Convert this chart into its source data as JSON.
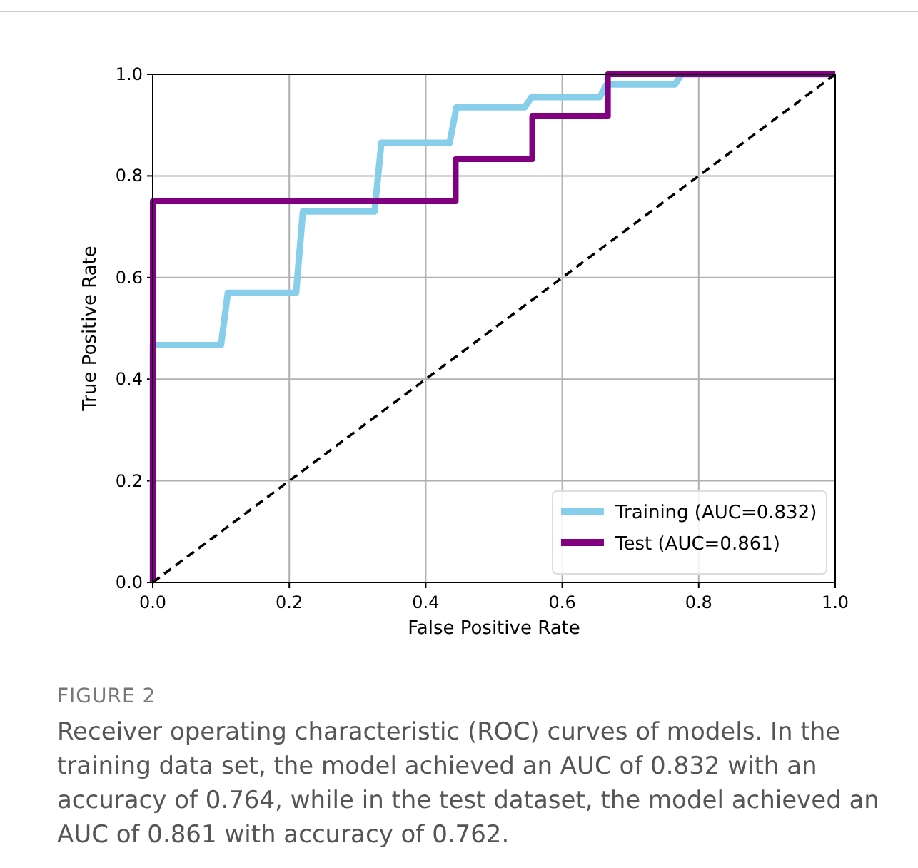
{
  "chart_data": {
    "type": "line",
    "xlabel": "False Positive Rate",
    "ylabel": "True Positive Rate",
    "xlim": [
      0,
      1
    ],
    "ylim": [
      0,
      1
    ],
    "xticks": [
      {
        "value": 0,
        "label": "0.0"
      },
      {
        "value": 0.2,
        "label": "0.2"
      },
      {
        "value": 0.4,
        "label": "0.4"
      },
      {
        "value": 0.6,
        "label": "0.6"
      },
      {
        "value": 0.8,
        "label": "0.8"
      },
      {
        "value": 1,
        "label": "1.0"
      }
    ],
    "yticks": [
      {
        "value": 0,
        "label": "0.0"
      },
      {
        "value": 0.2,
        "label": "0.2"
      },
      {
        "value": 0.4,
        "label": "0.4"
      },
      {
        "value": 0.6,
        "label": "0.6"
      },
      {
        "value": 0.8,
        "label": "0.8"
      },
      {
        "value": 1,
        "label": "1.0"
      }
    ],
    "grid": true,
    "legend": "bottom right",
    "series": [
      {
        "name": "Training (AUC=0.832)",
        "color": "#87ceeb",
        "x": [
          0,
          0,
          0.1,
          0.11,
          0.21,
          0.22,
          0.325,
          0.335,
          0.435,
          0.445,
          0.545,
          0.555,
          0.655,
          0.665,
          0.765,
          0.775,
          1
        ],
        "values": [
          0,
          0.467,
          0.467,
          0.57,
          0.57,
          0.73,
          0.73,
          0.865,
          0.865,
          0.935,
          0.935,
          0.955,
          0.955,
          0.98,
          0.98,
          1,
          1
        ]
      },
      {
        "name": "Test (AUC=0.861)",
        "color": "#800080",
        "x": [
          0,
          0,
          0.444,
          0.444,
          0.556,
          0.556,
          0.667,
          0.667,
          1
        ],
        "values": [
          0,
          0.75,
          0.75,
          0.833,
          0.833,
          0.917,
          0.917,
          1,
          1
        ]
      },
      {
        "color": "#000000",
        "line_style": "dashed",
        "x": [
          0,
          1
        ],
        "values": [
          0,
          1
        ]
      }
    ],
    "annotations": [
      "FIGURE 2",
      "Receiver operating characteristic (ROC) curves of models. In the training data set, the model achieved an AUC of 0.832 with an accuracy of 0.764, while in the test dataset, the model achieved an AUC of 0.861 with accuracy of 0.762."
    ]
  }
}
